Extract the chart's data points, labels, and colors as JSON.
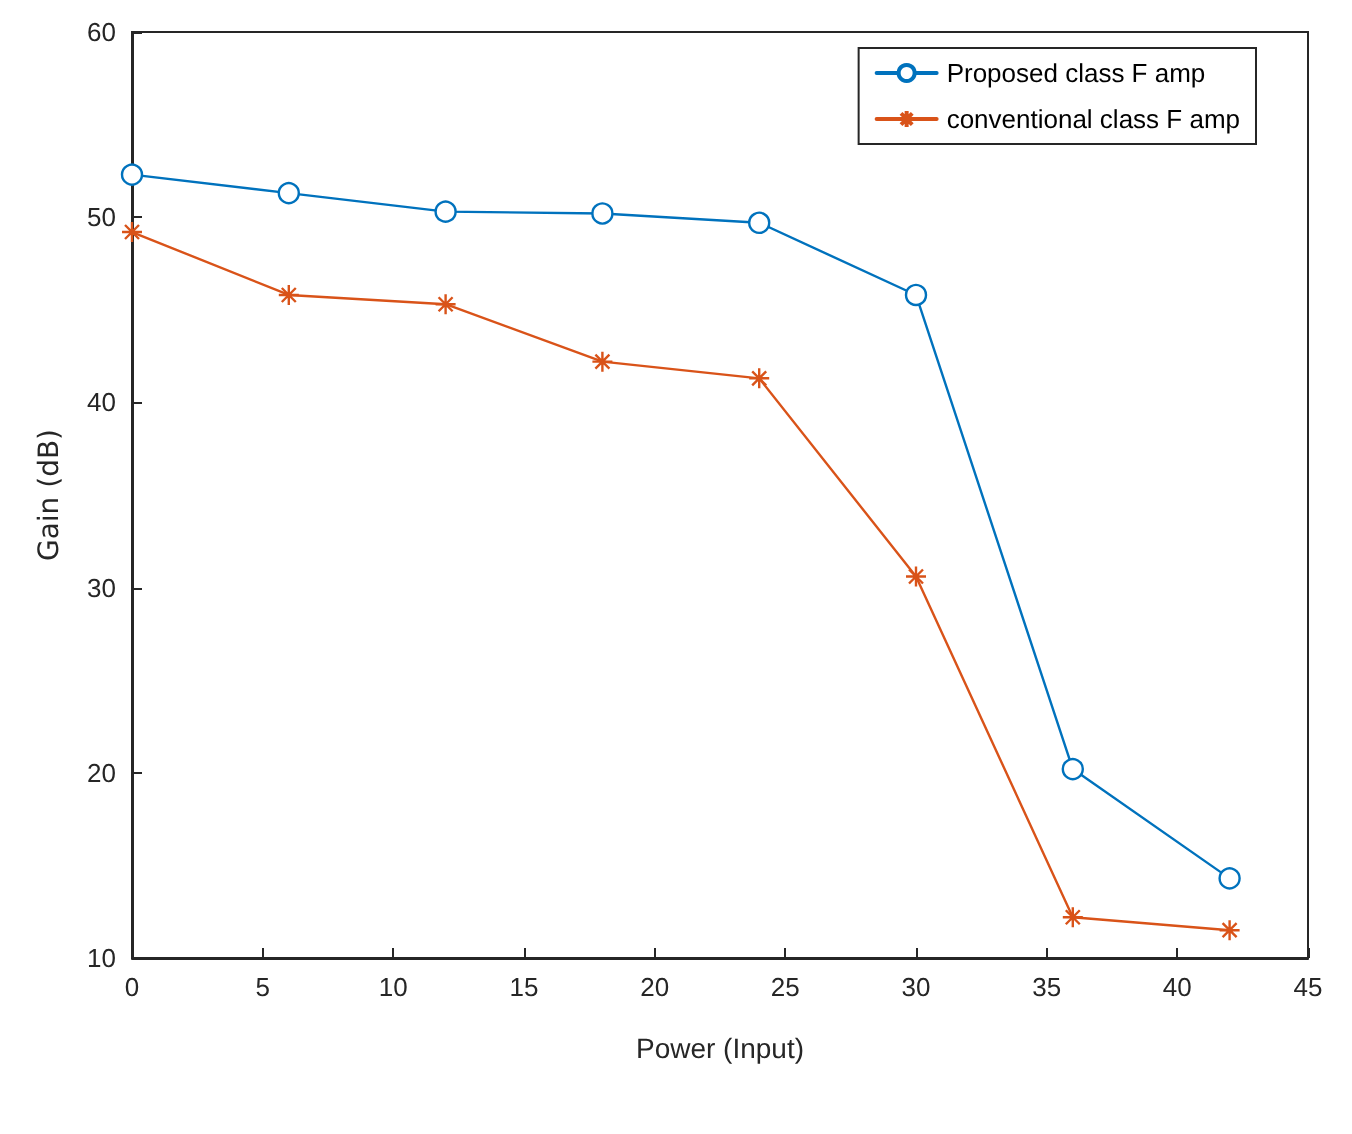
{
  "chart_data": {
    "type": "line",
    "xlabel": "Power (Input)",
    "ylabel": "Gain (dB)",
    "x": [
      0,
      6,
      12,
      18,
      24,
      30,
      36,
      42
    ],
    "series": [
      {
        "name": "Proposed class F amp",
        "color": "#0072bd",
        "marker": "circle",
        "values": [
          52.3,
          51.3,
          50.3,
          50.2,
          49.7,
          45.8,
          20.2,
          14.3
        ]
      },
      {
        "name": "conventional class F amp",
        "color": "#d95319",
        "marker": "cross",
        "values": [
          49.2,
          45.8,
          45.3,
          42.2,
          41.3,
          30.6,
          12.2,
          11.5
        ]
      }
    ],
    "xlim": [
      0,
      45
    ],
    "xticks": [
      0,
      5,
      10,
      15,
      20,
      25,
      30,
      35,
      40,
      45
    ],
    "ylim": [
      10,
      60
    ],
    "yticks": [
      10,
      20,
      30,
      40,
      50,
      60
    ],
    "grid": false,
    "legend": "top right",
    "line_style": "solid"
  }
}
